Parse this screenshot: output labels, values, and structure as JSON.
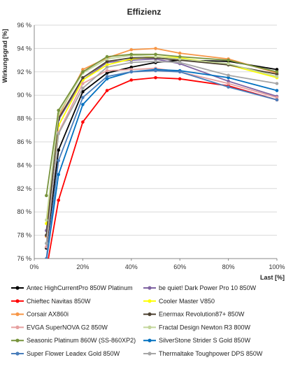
{
  "chart_data": {
    "type": "line",
    "title": "Effizienz",
    "xlabel": "Last [%]",
    "ylabel": "Wirkungsgrad [%]",
    "xlim": [
      0,
      100
    ],
    "ylim": [
      76,
      96
    ],
    "xticks": [
      0,
      20,
      40,
      60,
      80,
      100
    ],
    "xtick_labels": [
      "0%",
      "20%",
      "40%",
      "60%",
      "80%",
      "100%"
    ],
    "yticks": [
      76,
      78,
      80,
      82,
      84,
      86,
      88,
      90,
      92,
      94,
      96
    ],
    "ytick_labels": [
      "76 %",
      "78 %",
      "80 %",
      "82 %",
      "84 %",
      "86 %",
      "88 %",
      "90 %",
      "92 %",
      "94 %",
      "96 %"
    ],
    "x": [
      5,
      10,
      20,
      30,
      40,
      50,
      60,
      80,
      100
    ],
    "grid": "horizontal",
    "legend_position": "bottom",
    "series": [
      {
        "name": "Antec HighCurrentPro 850W Platinum",
        "color": "#000000",
        "values": [
          76.9,
          85.3,
          90.3,
          91.9,
          92.4,
          92.8,
          93.0,
          92.9,
          92.2
        ]
      },
      {
        "name": "be quiet! Dark Power Pro 10 850W",
        "color": "#8064a2",
        "values": [
          78.4,
          87.9,
          91.3,
          92.8,
          93.0,
          93.1,
          92.7,
          91.2,
          89.9
        ]
      },
      {
        "name": "Chieftec Navitas 850W",
        "color": "#ff0000",
        "values": [
          75.0,
          81.0,
          87.7,
          90.4,
          91.3,
          91.5,
          91.4,
          90.8,
          89.6
        ]
      },
      {
        "name": "Cooler Master V850",
        "color": "#ffff00",
        "values": [
          79.0,
          87.4,
          91.3,
          92.6,
          93.1,
          93.3,
          93.2,
          92.6,
          91.5
        ]
      },
      {
        "name": "Corsair AX860i",
        "color": "#f79646",
        "values": [
          77.9,
          88.2,
          92.2,
          93.2,
          93.9,
          94.0,
          93.6,
          93.1,
          91.9
        ]
      },
      {
        "name": "Enermax Revolution87+ 850W",
        "color": "#4d4232",
        "values": [
          78.0,
          88.0,
          91.5,
          92.9,
          93.2,
          93.2,
          93.0,
          92.6,
          91.8
        ]
      },
      {
        "name": "EVGA SuperNOVA G2 850W",
        "color": "#e6a0a0",
        "values": [
          77.0,
          86.8,
          91.0,
          92.1,
          92.2,
          92.3,
          92.0,
          91.0,
          89.8
        ]
      },
      {
        "name": "Fractal Design Newton R3 800W",
        "color": "#c3d69b",
        "values": [
          79.3,
          88.4,
          91.9,
          93.1,
          93.4,
          93.3,
          93.1,
          92.7,
          91.6
        ]
      },
      {
        "name": "Seasonic Platinum 860W (SS-860XP2)",
        "color": "#77933c",
        "values": [
          81.4,
          88.7,
          92.0,
          93.3,
          93.5,
          93.5,
          93.3,
          93.0,
          92.0
        ]
      },
      {
        "name": "SilverStone Strider S Gold 850W",
        "color": "#0070c0",
        "values": [
          75.8,
          83.2,
          89.2,
          91.4,
          92.0,
          92.2,
          92.1,
          91.5,
          90.4
        ]
      },
      {
        "name": "Super Flower Leadex Gold 850W",
        "color": "#4a7ebb",
        "values": [
          76.0,
          84.4,
          89.8,
          91.6,
          92.0,
          92.1,
          92.0,
          90.7,
          89.6
        ]
      },
      {
        "name": "Thermaltake Toughpower DPS 850W",
        "color": "#a6a6a6",
        "values": [
          77.3,
          86.7,
          90.6,
          92.4,
          92.8,
          92.9,
          92.8,
          91.7,
          91.0
        ]
      }
    ]
  }
}
